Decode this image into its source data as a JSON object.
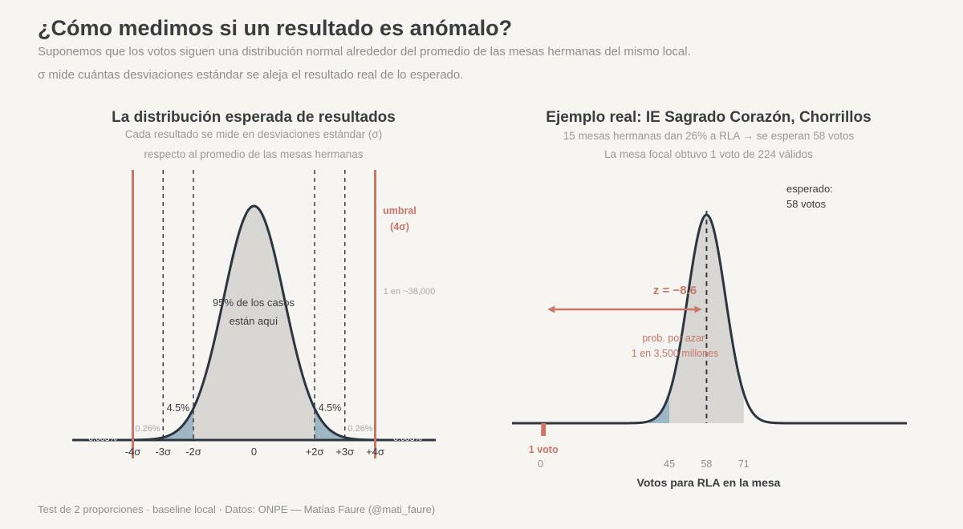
{
  "header": {
    "title": "¿Cómo medimos si un resultado es anómalo?",
    "subtitle_1": "Suponemos que los votos siguen una distribución normal alrededor del promedio de las mesas hermanas del mismo local.",
    "subtitle_2": "σ mide cuántas desviaciones estándar se aleja el resultado real de lo esperado."
  },
  "footer": "Test de 2 proporciones · baseline local · Datos: ONPE — Matías Faure (@mati_faure)",
  "colors": {
    "curve": "#2c3640",
    "fill": "#d8d7d3",
    "tail": "#9fb7c4",
    "threshold": "#cc7669",
    "dashed": "#3a3d40"
  },
  "chart_data": [
    {
      "type": "area",
      "title": "La distribución esperada de resultados",
      "subtitle_1": "Cada resultado se mide en desviaciones estándar (σ)",
      "subtitle_2": "respecto al promedio de las mesas hermanas",
      "distribution": {
        "mean": 0,
        "sd": 1
      },
      "xlim": [
        -6,
        6
      ],
      "ticks": [
        {
          "value": -4,
          "label": "-4σ"
        },
        {
          "value": -3,
          "label": "-3σ"
        },
        {
          "value": -2,
          "label": "-2σ"
        },
        {
          "value": 0,
          "label": "0"
        },
        {
          "value": 2,
          "label": "+2σ"
        },
        {
          "value": 3,
          "label": "+3σ"
        },
        {
          "value": 4,
          "label": "+4σ"
        }
      ],
      "dashed_lines": [
        -3,
        -2,
        2,
        3
      ],
      "threshold_lines": [
        -4,
        4
      ],
      "threshold_label_1": "umbral",
      "threshold_label_2": "(4σ)",
      "threshold_note": "1 en ~38,000",
      "center_label_1": "95% de los casos",
      "center_label_2": "están aquí",
      "tail_label_left": "4.5%",
      "tail_label_right": "4.5%",
      "inner_label_left": "0.26%",
      "inner_label_right": "0.26%",
      "outer_label_left": "0.003%",
      "outer_label_right": "0.003%"
    },
    {
      "type": "area",
      "title": "Ejemplo real: IE Sagrado Corazón, Chorrillos",
      "subtitle_1": "15 mesas hermanas dan 26% a RLA → se esperan 58 votos",
      "subtitle_2": "La mesa focal obtuvo 1 voto de 224 válidos",
      "distribution": {
        "mean": 58,
        "sd": 6.6
      },
      "xlim": [
        -10,
        128
      ],
      "ticks": [
        {
          "value": 0,
          "label": "0"
        },
        {
          "value": 45,
          "label": "45"
        },
        {
          "value": 58,
          "label": "58"
        },
        {
          "value": 71,
          "label": "71"
        }
      ],
      "shaded_from": 45,
      "shaded_to": 71,
      "tail_shade_from": 38,
      "tail_shade_to": 45,
      "mean_label_1": "esperado:",
      "mean_label_2": "58 votos",
      "z_label": "z = −8.6",
      "prob_label_1": "prob. por azar:",
      "prob_label_2": "1 en 3,500 millones",
      "observed": 1,
      "observed_label": "1 voto",
      "xlabel": "Votos para RLA en la mesa"
    }
  ]
}
